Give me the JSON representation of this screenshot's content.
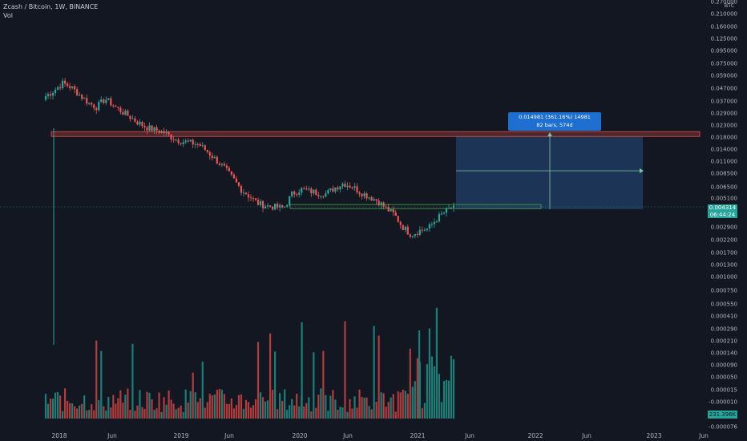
{
  "legend": {
    "symbol_line": "Zcash / Bitcoin, 1W, BINANCE",
    "vol_label": "Vol"
  },
  "price_axis": {
    "unit": "BTC",
    "ticks": [
      "0.270000",
      "0.210000",
      "0.160000",
      "0.125000",
      "0.095000",
      "0.075000",
      "0.059000",
      "0.047000",
      "0.037000",
      "0.029000",
      "0.023000",
      "0.018000",
      "0.014000",
      "0.011000",
      "0.008500",
      "0.006500",
      "0.005100",
      "0.003900",
      "0.002900",
      "0.002200",
      "0.001700",
      "0.001300",
      "0.001000",
      "0.000750",
      "0.000550",
      "0.000410",
      "0.000290",
      "0.000210",
      "0.000140",
      "0.000090",
      "0.000050",
      "0.000015",
      "-0.000010",
      "-0.000050",
      "-0.000076"
    ]
  },
  "time_axis": {
    "ticks": [
      "2018",
      "Jun",
      "2019",
      "Jun",
      "2020",
      "Jun",
      "2021",
      "Jun",
      "2022",
      "Jun",
      "2023",
      "Jun"
    ]
  },
  "measure": {
    "line1": "0.014981 (361.16%) 14981",
    "line2": "82 bars, 574d"
  },
  "last_price": {
    "value": "0.004314",
    "countdown": "06:44:24"
  },
  "last_volume": "231.396K",
  "colors": {
    "background": "#131722",
    "up": "#26a69a",
    "down": "#ef5350",
    "vol_up": "#1b7f79",
    "vol_down": "#b33c3c",
    "target_zone": "#1f3a5f",
    "resistance": "#ef5350",
    "support": "#4caf50"
  },
  "chart_data": {
    "type": "candlestick",
    "title": "Zcash / Bitcoin, 1W, BINANCE",
    "scale": "log",
    "ylim": [
      0.0011,
      0.27
    ],
    "grid": false,
    "x": [
      "2018",
      "Jun",
      "2019",
      "Jun",
      "2020",
      "Jun",
      "2021"
    ],
    "close_path": [
      0.04,
      0.045,
      0.052,
      0.048,
      0.041,
      0.035,
      0.032,
      0.038,
      0.033,
      0.029,
      0.026,
      0.023,
      0.021,
      0.02,
      0.019,
      0.017,
      0.016,
      0.0155,
      0.015,
      0.013,
      0.011,
      0.0093,
      0.0075,
      0.006,
      0.0052,
      0.0045,
      0.0043,
      0.0042,
      0.0041,
      0.0055,
      0.006,
      0.0058,
      0.0056,
      0.0055,
      0.0062,
      0.0068,
      0.0064,
      0.0057,
      0.0052,
      0.0048,
      0.0041,
      0.0036,
      0.0028,
      0.0024,
      0.0026,
      0.0027,
      0.0033,
      0.0038,
      0.0043
    ],
    "last_close": 0.004314,
    "resistance_level": 0.0185,
    "support_level": 0.0042,
    "measured_move": {
      "change": 0.014981,
      "percent": 361.16,
      "bars": 82,
      "days": 574
    }
  }
}
